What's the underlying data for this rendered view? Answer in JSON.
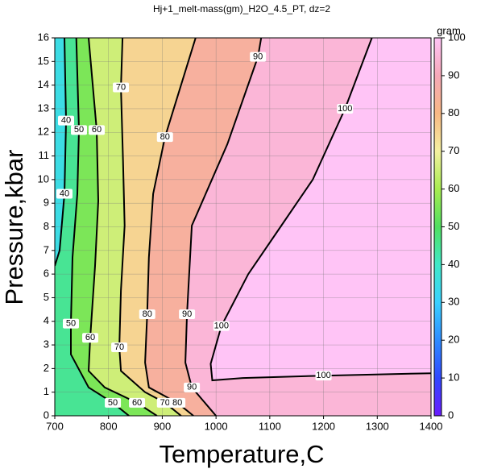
{
  "chart_data": {
    "type": "contour",
    "title": "Hj+1_melt-mass(gm)_H2O_4.5_PT, dz=2",
    "x_label": "Temperature,C",
    "y_label": "Pressure,kbar",
    "xlim": [
      700,
      1400
    ],
    "ylim": [
      0,
      16
    ],
    "xticks": [
      700,
      800,
      900,
      1000,
      1100,
      1200,
      1300,
      1400
    ],
    "yticks": [
      0,
      1,
      2,
      3,
      4,
      5,
      6,
      7,
      8,
      9,
      10,
      11,
      12,
      13,
      14,
      15,
      16
    ],
    "grid": true,
    "colorbar": {
      "label": "gram",
      "lim": [
        0,
        100
      ],
      "ticks": [
        0,
        10,
        20,
        30,
        40,
        50,
        60,
        70,
        80,
        90,
        100
      ],
      "colors": [
        "#6a1cff",
        "#3048ff",
        "#2e8cff",
        "#3ad0ff",
        "#40e8c8",
        "#50e060",
        "#a8ec50",
        "#f4f0a0",
        "#f8b884",
        "#f6a8b8",
        "#ffc4f6"
      ]
    },
    "contours": [
      {
        "level": 40,
        "x": [
          718,
          721,
          718,
          709,
          700
        ],
        "y": [
          16,
          12.5,
          9.4,
          7.0,
          6.35
        ]
      },
      {
        "level": 50,
        "x": [
          740,
          745,
          742,
          733,
          730,
          730,
          763,
          808,
          838
        ],
        "y": [
          16,
          12.1,
          9.4,
          6.7,
          3.9,
          2.6,
          1.2,
          0.55,
          0
        ]
      },
      {
        "level": 60,
        "x": [
          763,
          778,
          781,
          775,
          766,
          763,
          793,
          853,
          890
        ],
        "y": [
          16,
          12.1,
          9.1,
          6.35,
          3.3,
          1.9,
          1.2,
          0.55,
          0
        ]
      },
      {
        "level": 70,
        "x": [
          826,
          823,
          827,
          830,
          823,
          820,
          823,
          868,
          905,
          935
        ],
        "y": [
          16,
          13.9,
          10.8,
          8.05,
          5.3,
          2.9,
          1.9,
          1.0,
          0.55,
          0
        ]
      },
      {
        "level": 80,
        "x": [
          962,
          905,
          883,
          875,
          872,
          868,
          875,
          928,
          958
        ],
        "y": [
          16,
          11.8,
          9.4,
          6.7,
          4.3,
          2.25,
          1.2,
          0.55,
          0
        ]
      },
      {
        "level": 90,
        "x": [
          1084,
          1078,
          1021,
          955,
          946,
          943,
          955,
          1000
        ],
        "y": [
          16,
          15.2,
          11.5,
          8.05,
          4.3,
          2.25,
          1.2,
          0
        ]
      },
      {
        "level": 100,
        "x": [
          1290,
          1240,
          1180,
          1120,
          1060,
          1010,
          990,
          993,
          1050,
          1200,
          1400
        ],
        "y": [
          16,
          13,
          10,
          8,
          6,
          3.8,
          2.2,
          1.5,
          1.6,
          1.7,
          1.8
        ]
      }
    ]
  }
}
